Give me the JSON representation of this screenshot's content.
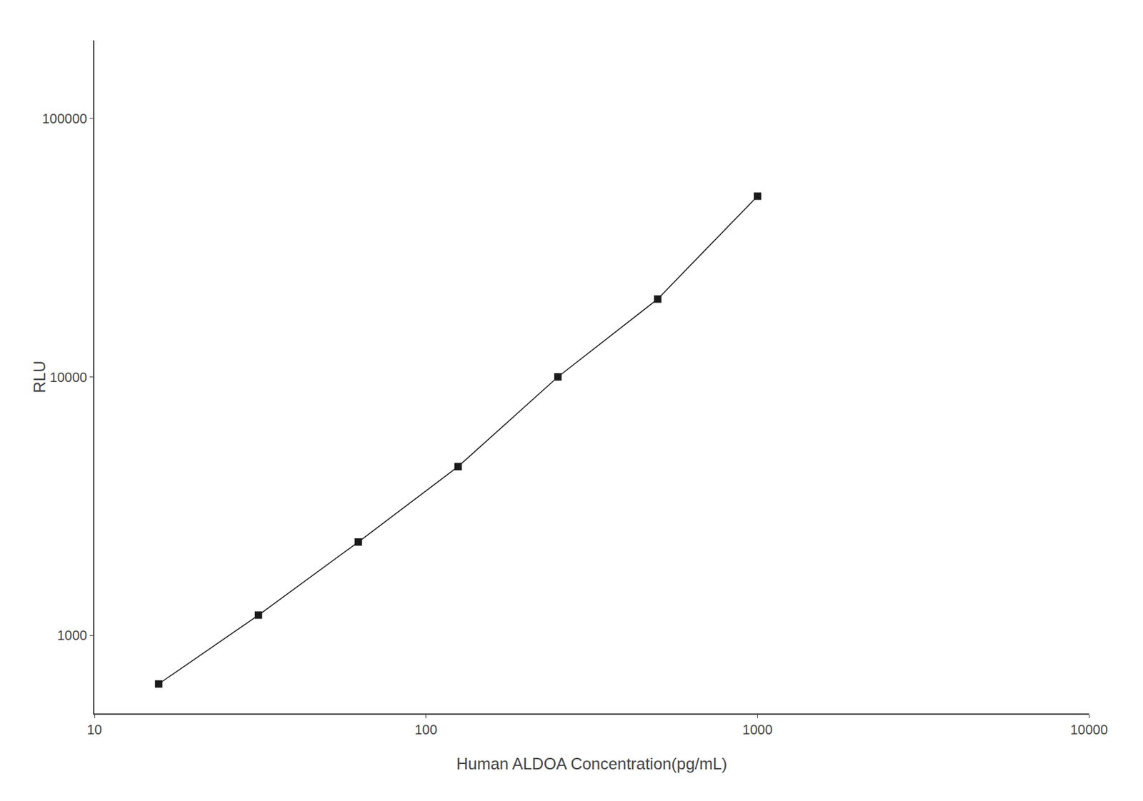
{
  "chart_data": {
    "type": "line",
    "x": [
      15.625,
      31.25,
      62.5,
      125,
      250,
      500,
      1000
    ],
    "values": [
      650,
      1200,
      2300,
      4500,
      10000,
      20000,
      50000
    ],
    "xlabel": "Human ALDOA Concentration(pg/mL)",
    "ylabel": "RLU",
    "xlim": [
      10,
      10000
    ],
    "ylim": [
      500,
      200000
    ],
    "xticks": [
      10,
      100,
      1000,
      10000
    ],
    "yticks": [
      1000,
      10000,
      100000
    ],
    "log": true,
    "grid": false,
    "marker": "square",
    "line_style": "solid",
    "color": "#1a1a1a"
  }
}
